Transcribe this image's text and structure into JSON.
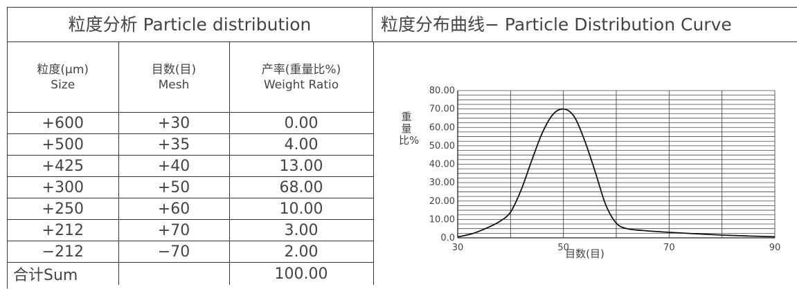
{
  "table": {
    "title": "粒度分析 Particle distribution",
    "headers": [
      {
        "line1": "粒度(μm)",
        "line2": "Size"
      },
      {
        "line1": "目数(目)",
        "line2": "Mesh"
      },
      {
        "line1": "产率(重量比%)",
        "line2": "Weight Ratio"
      }
    ],
    "rows": [
      {
        "size": "+600",
        "mesh": "+30",
        "ratio": "0.00"
      },
      {
        "size": "+500",
        "mesh": "+35",
        "ratio": "4.00"
      },
      {
        "size": "+425",
        "mesh": "+40",
        "ratio": "13.00"
      },
      {
        "size": "+300",
        "mesh": "+50",
        "ratio": "68.00"
      },
      {
        "size": "+250",
        "mesh": "+60",
        "ratio": "10.00"
      },
      {
        "size": "+212",
        "mesh": "+70",
        "ratio": "3.00"
      },
      {
        "size": "−212",
        "mesh": "−70",
        "ratio": "2.00"
      }
    ],
    "sum": {
      "label": "合计Sum",
      "mesh": "",
      "ratio": "100.00"
    }
  },
  "chart_data": {
    "type": "line",
    "title": "粒度分布曲线− Particle Distribution Curve",
    "xlabel": "目数(目)",
    "ylabel": "重量比%",
    "xlim": [
      30,
      90
    ],
    "ylim": [
      0,
      80
    ],
    "x_ticks": [
      "30",
      "50",
      "70",
      "90"
    ],
    "y_ticks": [
      "0.0",
      "10.00",
      "20.00",
      "30.00",
      "40.00",
      "50.00",
      "60.00",
      "70.00",
      "80.00"
    ],
    "grid": true,
    "series": [
      {
        "x": [
          30,
          33,
          36,
          38,
          40,
          42,
          44,
          46,
          48,
          50,
          52,
          54,
          56,
          58,
          60,
          62,
          65,
          70,
          75,
          80,
          85,
          90
        ],
        "y": [
          0.5,
          2.5,
          6,
          9,
          14,
          26,
          42,
          57,
          67,
          70,
          66,
          53,
          36,
          18,
          8,
          5,
          4,
          3,
          2.2,
          1.5,
          1.0,
          0.6
        ]
      }
    ]
  }
}
